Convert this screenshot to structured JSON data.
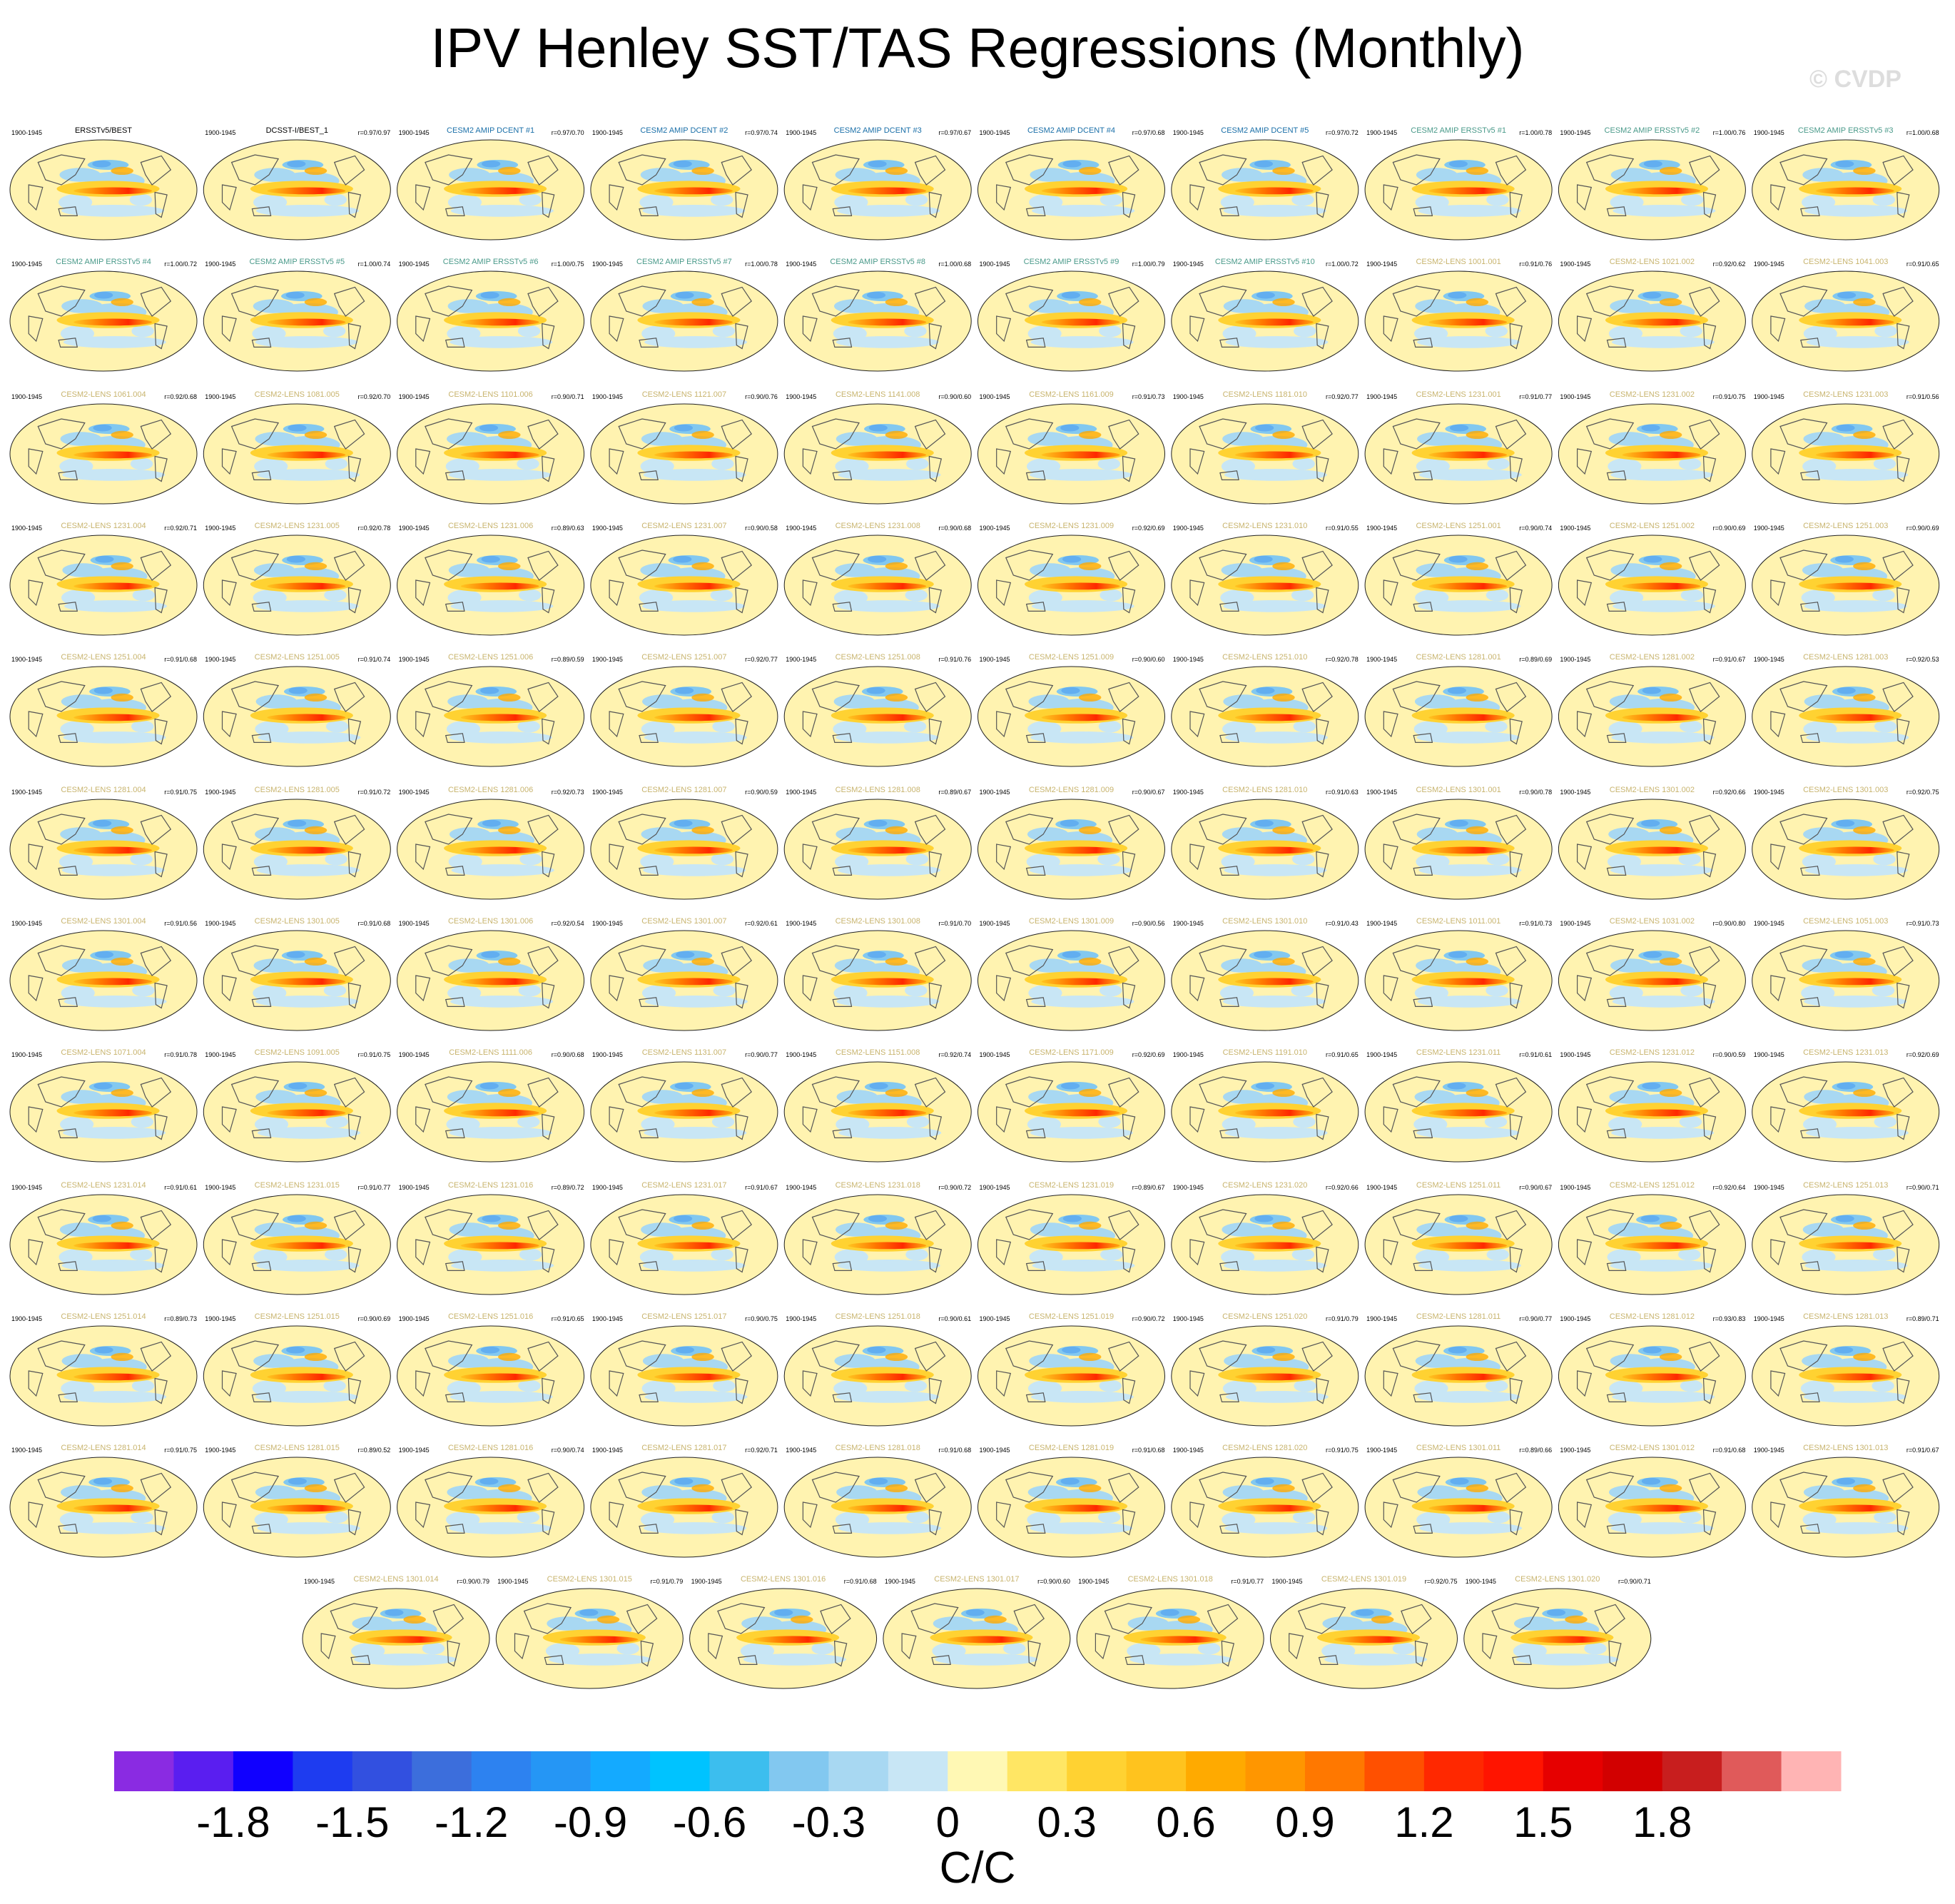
{
  "page": {
    "title": "IPV Henley SST/TAS Regressions (Monthly)",
    "watermark": "© CVDP"
  },
  "chart_data": {
    "type": "heatmap",
    "title": "IPV Henley SST/TAS Regressions (Monthly)",
    "period": "1900-1945",
    "panels": [
      {
        "label": "ERSSTv5/BEST",
        "label_color": "#000000",
        "stats": ""
      },
      {
        "label": "DCSST-I/BEST_1",
        "label_color": "#000000",
        "stats": "r=0.97/0.97"
      },
      {
        "label": "CESM2 AMIP DCENT #1",
        "label_color": "#1a6fa8",
        "stats": "r=0.97/0.70"
      },
      {
        "label": "CESM2 AMIP DCENT #2",
        "label_color": "#1a6fa8",
        "stats": "r=0.97/0.74"
      },
      {
        "label": "CESM2 AMIP DCENT #3",
        "label_color": "#1a6fa8",
        "stats": "r=0.97/0.67"
      },
      {
        "label": "CESM2 AMIP DCENT #4",
        "label_color": "#1a6fa8",
        "stats": "r=0.97/0.68"
      },
      {
        "label": "CESM2 AMIP DCENT #5",
        "label_color": "#1a6fa8",
        "stats": "r=0.97/0.72"
      },
      {
        "label": "CESM2 AMIP ERSSTv5 #1",
        "label_color": "#4a9a8a",
        "stats": "r=1.00/0.78"
      },
      {
        "label": "CESM2 AMIP ERSSTv5 #2",
        "label_color": "#4a9a8a",
        "stats": "r=1.00/0.76"
      },
      {
        "label": "CESM2 AMIP ERSSTv5 #3",
        "label_color": "#4a9a8a",
        "stats": "r=1.00/0.68"
      },
      {
        "label": "CESM2 AMIP ERSSTv5 #4",
        "label_color": "#4a9a8a",
        "stats": "r=1.00/0.72"
      },
      {
        "label": "CESM2 AMIP ERSSTv5 #5",
        "label_color": "#4a9a8a",
        "stats": "r=1.00/0.74"
      },
      {
        "label": "CESM2 AMIP ERSSTv5 #6",
        "label_color": "#4a9a8a",
        "stats": "r=1.00/0.75"
      },
      {
        "label": "CESM2 AMIP ERSSTv5 #7",
        "label_color": "#4a9a8a",
        "stats": "r=1.00/0.78"
      },
      {
        "label": "CESM2 AMIP ERSSTv5 #8",
        "label_color": "#4a9a8a",
        "stats": "r=1.00/0.68"
      },
      {
        "label": "CESM2 AMIP ERSSTv5 #9",
        "label_color": "#4a9a8a",
        "stats": "r=1.00/0.79"
      },
      {
        "label": "CESM2 AMIP ERSSTv5 #10",
        "label_color": "#4a9a8a",
        "stats": "r=1.00/0.72"
      },
      {
        "label": "CESM2-LENS 1001.001",
        "label_color": "#c8b46e",
        "stats": "r=0.91/0.76"
      },
      {
        "label": "CESM2-LENS 1021.002",
        "label_color": "#c8b46e",
        "stats": "r=0.92/0.62"
      },
      {
        "label": "CESM2-LENS 1041.003",
        "label_color": "#c8b46e",
        "stats": "r=0.91/0.65"
      },
      {
        "label": "CESM2-LENS 1061.004",
        "label_color": "#c8b46e",
        "stats": "r=0.92/0.68"
      },
      {
        "label": "CESM2-LENS 1081.005",
        "label_color": "#c8b46e",
        "stats": "r=0.92/0.70"
      },
      {
        "label": "CESM2-LENS 1101.006",
        "label_color": "#c8b46e",
        "stats": "r=0.90/0.71"
      },
      {
        "label": "CESM2-LENS 1121.007",
        "label_color": "#c8b46e",
        "stats": "r=0.90/0.76"
      },
      {
        "label": "CESM2-LENS 1141.008",
        "label_color": "#c8b46e",
        "stats": "r=0.90/0.60"
      },
      {
        "label": "CESM2-LENS 1161.009",
        "label_color": "#c8b46e",
        "stats": "r=0.91/0.73"
      },
      {
        "label": "CESM2-LENS 1181.010",
        "label_color": "#c8b46e",
        "stats": "r=0.92/0.77"
      },
      {
        "label": "CESM2-LENS 1231.001",
        "label_color": "#c8b46e",
        "stats": "r=0.91/0.77"
      },
      {
        "label": "CESM2-LENS 1231.002",
        "label_color": "#c8b46e",
        "stats": "r=0.91/0.75"
      },
      {
        "label": "CESM2-LENS 1231.003",
        "label_color": "#c8b46e",
        "stats": "r=0.91/0.56"
      },
      {
        "label": "CESM2-LENS 1231.004",
        "label_color": "#c8b46e",
        "stats": "r=0.92/0.71"
      },
      {
        "label": "CESM2-LENS 1231.005",
        "label_color": "#c8b46e",
        "stats": "r=0.92/0.78"
      },
      {
        "label": "CESM2-LENS 1231.006",
        "label_color": "#c8b46e",
        "stats": "r=0.89/0.63"
      },
      {
        "label": "CESM2-LENS 1231.007",
        "label_color": "#c8b46e",
        "stats": "r=0.90/0.58"
      },
      {
        "label": "CESM2-LENS 1231.008",
        "label_color": "#c8b46e",
        "stats": "r=0.90/0.68"
      },
      {
        "label": "CESM2-LENS 1231.009",
        "label_color": "#c8b46e",
        "stats": "r=0.92/0.69"
      },
      {
        "label": "CESM2-LENS 1231.010",
        "label_color": "#c8b46e",
        "stats": "r=0.91/0.55"
      },
      {
        "label": "CESM2-LENS 1251.001",
        "label_color": "#c8b46e",
        "stats": "r=0.90/0.74"
      },
      {
        "label": "CESM2-LENS 1251.002",
        "label_color": "#c8b46e",
        "stats": "r=0.90/0.69"
      },
      {
        "label": "CESM2-LENS 1251.003",
        "label_color": "#c8b46e",
        "stats": "r=0.90/0.69"
      },
      {
        "label": "CESM2-LENS 1251.004",
        "label_color": "#c8b46e",
        "stats": "r=0.91/0.68"
      },
      {
        "label": "CESM2-LENS 1251.005",
        "label_color": "#c8b46e",
        "stats": "r=0.91/0.74"
      },
      {
        "label": "CESM2-LENS 1251.006",
        "label_color": "#c8b46e",
        "stats": "r=0.89/0.59"
      },
      {
        "label": "CESM2-LENS 1251.007",
        "label_color": "#c8b46e",
        "stats": "r=0.92/0.77"
      },
      {
        "label": "CESM2-LENS 1251.008",
        "label_color": "#c8b46e",
        "stats": "r=0.91/0.76"
      },
      {
        "label": "CESM2-LENS 1251.009",
        "label_color": "#c8b46e",
        "stats": "r=0.90/0.60"
      },
      {
        "label": "CESM2-LENS 1251.010",
        "label_color": "#c8b46e",
        "stats": "r=0.92/0.78"
      },
      {
        "label": "CESM2-LENS 1281.001",
        "label_color": "#c8b46e",
        "stats": "r=0.89/0.69"
      },
      {
        "label": "CESM2-LENS 1281.002",
        "label_color": "#c8b46e",
        "stats": "r=0.91/0.67"
      },
      {
        "label": "CESM2-LENS 1281.003",
        "label_color": "#c8b46e",
        "stats": "r=0.92/0.53"
      },
      {
        "label": "CESM2-LENS 1281.004",
        "label_color": "#c8b46e",
        "stats": "r=0.91/0.75"
      },
      {
        "label": "CESM2-LENS 1281.005",
        "label_color": "#c8b46e",
        "stats": "r=0.91/0.72"
      },
      {
        "label": "CESM2-LENS 1281.006",
        "label_color": "#c8b46e",
        "stats": "r=0.92/0.73"
      },
      {
        "label": "CESM2-LENS 1281.007",
        "label_color": "#c8b46e",
        "stats": "r=0.90/0.59"
      },
      {
        "label": "CESM2-LENS 1281.008",
        "label_color": "#c8b46e",
        "stats": "r=0.89/0.67"
      },
      {
        "label": "CESM2-LENS 1281.009",
        "label_color": "#c8b46e",
        "stats": "r=0.90/0.67"
      },
      {
        "label": "CESM2-LENS 1281.010",
        "label_color": "#c8b46e",
        "stats": "r=0.91/0.63"
      },
      {
        "label": "CESM2-LENS 1301.001",
        "label_color": "#c8b46e",
        "stats": "r=0.90/0.78"
      },
      {
        "label": "CESM2-LENS 1301.002",
        "label_color": "#c8b46e",
        "stats": "r=0.92/0.66"
      },
      {
        "label": "CESM2-LENS 1301.003",
        "label_color": "#c8b46e",
        "stats": "r=0.92/0.75"
      },
      {
        "label": "CESM2-LENS 1301.004",
        "label_color": "#c8b46e",
        "stats": "r=0.91/0.56"
      },
      {
        "label": "CESM2-LENS 1301.005",
        "label_color": "#c8b46e",
        "stats": "r=0.91/0.68"
      },
      {
        "label": "CESM2-LENS 1301.006",
        "label_color": "#c8b46e",
        "stats": "r=0.92/0.54"
      },
      {
        "label": "CESM2-LENS 1301.007",
        "label_color": "#c8b46e",
        "stats": "r=0.92/0.61"
      },
      {
        "label": "CESM2-LENS 1301.008",
        "label_color": "#c8b46e",
        "stats": "r=0.91/0.70"
      },
      {
        "label": "CESM2-LENS 1301.009",
        "label_color": "#c8b46e",
        "stats": "r=0.90/0.56"
      },
      {
        "label": "CESM2-LENS 1301.010",
        "label_color": "#c8b46e",
        "stats": "r=0.91/0.43"
      },
      {
        "label": "CESM2-LENS 1011.001",
        "label_color": "#c8b46e",
        "stats": "r=0.91/0.73"
      },
      {
        "label": "CESM2-LENS 1031.002",
        "label_color": "#c8b46e",
        "stats": "r=0.90/0.80"
      },
      {
        "label": "CESM2-LENS 1051.003",
        "label_color": "#c8b46e",
        "stats": "r=0.91/0.73"
      },
      {
        "label": "CESM2-LENS 1071.004",
        "label_color": "#c8b46e",
        "stats": "r=0.91/0.78"
      },
      {
        "label": "CESM2-LENS 1091.005",
        "label_color": "#c8b46e",
        "stats": "r=0.91/0.75"
      },
      {
        "label": "CESM2-LENS 1111.006",
        "label_color": "#c8b46e",
        "stats": "r=0.90/0.68"
      },
      {
        "label": "CESM2-LENS 1131.007",
        "label_color": "#c8b46e",
        "stats": "r=0.90/0.77"
      },
      {
        "label": "CESM2-LENS 1151.008",
        "label_color": "#c8b46e",
        "stats": "r=0.92/0.74"
      },
      {
        "label": "CESM2-LENS 1171.009",
        "label_color": "#c8b46e",
        "stats": "r=0.92/0.69"
      },
      {
        "label": "CESM2-LENS 1191.010",
        "label_color": "#c8b46e",
        "stats": "r=0.91/0.65"
      },
      {
        "label": "CESM2-LENS 1231.011",
        "label_color": "#c8b46e",
        "stats": "r=0.91/0.61"
      },
      {
        "label": "CESM2-LENS 1231.012",
        "label_color": "#c8b46e",
        "stats": "r=0.90/0.59"
      },
      {
        "label": "CESM2-LENS 1231.013",
        "label_color": "#c8b46e",
        "stats": "r=0.92/0.69"
      },
      {
        "label": "CESM2-LENS 1231.014",
        "label_color": "#c8b46e",
        "stats": "r=0.91/0.61"
      },
      {
        "label": "CESM2-LENS 1231.015",
        "label_color": "#c8b46e",
        "stats": "r=0.91/0.77"
      },
      {
        "label": "CESM2-LENS 1231.016",
        "label_color": "#c8b46e",
        "stats": "r=0.89/0.72"
      },
      {
        "label": "CESM2-LENS 1231.017",
        "label_color": "#c8b46e",
        "stats": "r=0.91/0.67"
      },
      {
        "label": "CESM2-LENS 1231.018",
        "label_color": "#c8b46e",
        "stats": "r=0.90/0.72"
      },
      {
        "label": "CESM2-LENS 1231.019",
        "label_color": "#c8b46e",
        "stats": "r=0.89/0.67"
      },
      {
        "label": "CESM2-LENS 1231.020",
        "label_color": "#c8b46e",
        "stats": "r=0.92/0.66"
      },
      {
        "label": "CESM2-LENS 1251.011",
        "label_color": "#c8b46e",
        "stats": "r=0.90/0.67"
      },
      {
        "label": "CESM2-LENS 1251.012",
        "label_color": "#c8b46e",
        "stats": "r=0.92/0.64"
      },
      {
        "label": "CESM2-LENS 1251.013",
        "label_color": "#c8b46e",
        "stats": "r=0.90/0.71"
      },
      {
        "label": "CESM2-LENS 1251.014",
        "label_color": "#c8b46e",
        "stats": "r=0.89/0.73"
      },
      {
        "label": "CESM2-LENS 1251.015",
        "label_color": "#c8b46e",
        "stats": "r=0.90/0.69"
      },
      {
        "label": "CESM2-LENS 1251.016",
        "label_color": "#c8b46e",
        "stats": "r=0.91/0.65"
      },
      {
        "label": "CESM2-LENS 1251.017",
        "label_color": "#c8b46e",
        "stats": "r=0.90/0.75"
      },
      {
        "label": "CESM2-LENS 1251.018",
        "label_color": "#c8b46e",
        "stats": "r=0.90/0.61"
      },
      {
        "label": "CESM2-LENS 1251.019",
        "label_color": "#c8b46e",
        "stats": "r=0.90/0.72"
      },
      {
        "label": "CESM2-LENS 1251.020",
        "label_color": "#c8b46e",
        "stats": "r=0.91/0.79"
      },
      {
        "label": "CESM2-LENS 1281.011",
        "label_color": "#c8b46e",
        "stats": "r=0.90/0.77"
      },
      {
        "label": "CESM2-LENS 1281.012",
        "label_color": "#c8b46e",
        "stats": "r=0.93/0.83"
      },
      {
        "label": "CESM2-LENS 1281.013",
        "label_color": "#c8b46e",
        "stats": "r=0.89/0.71"
      },
      {
        "label": "CESM2-LENS 1281.014",
        "label_color": "#c8b46e",
        "stats": "r=0.91/0.75"
      },
      {
        "label": "CESM2-LENS 1281.015",
        "label_color": "#c8b46e",
        "stats": "r=0.89/0.52"
      },
      {
        "label": "CESM2-LENS 1281.016",
        "label_color": "#c8b46e",
        "stats": "r=0.90/0.74"
      },
      {
        "label": "CESM2-LENS 1281.017",
        "label_color": "#c8b46e",
        "stats": "r=0.92/0.71"
      },
      {
        "label": "CESM2-LENS 1281.018",
        "label_color": "#c8b46e",
        "stats": "r=0.91/0.68"
      },
      {
        "label": "CESM2-LENS 1281.019",
        "label_color": "#c8b46e",
        "stats": "r=0.91/0.68"
      },
      {
        "label": "CESM2-LENS 1281.020",
        "label_color": "#c8b46e",
        "stats": "r=0.91/0.75"
      },
      {
        "label": "CESM2-LENS 1301.011",
        "label_color": "#c8b46e",
        "stats": "r=0.89/0.66"
      },
      {
        "label": "CESM2-LENS 1301.012",
        "label_color": "#c8b46e",
        "stats": "r=0.91/0.68"
      },
      {
        "label": "CESM2-LENS 1301.013",
        "label_color": "#c8b46e",
        "stats": "r=0.91/0.67"
      },
      {
        "label": "CESM2-LENS 1301.014",
        "label_color": "#c8b46e",
        "stats": "r=0.90/0.79"
      },
      {
        "label": "CESM2-LENS 1301.015",
        "label_color": "#c8b46e",
        "stats": "r=0.91/0.79"
      },
      {
        "label": "CESM2-LENS 1301.016",
        "label_color": "#c8b46e",
        "stats": "r=0.91/0.68"
      },
      {
        "label": "CESM2-LENS 1301.017",
        "label_color": "#c8b46e",
        "stats": "r=0.90/0.60"
      },
      {
        "label": "CESM2-LENS 1301.018",
        "label_color": "#c8b46e",
        "stats": "r=0.91/0.77"
      },
      {
        "label": "CESM2-LENS 1301.019",
        "label_color": "#c8b46e",
        "stats": "r=0.92/0.75"
      },
      {
        "label": "CESM2-LENS 1301.020",
        "label_color": "#c8b46e",
        "stats": "r=0.90/0.71"
      }
    ],
    "colorbar": {
      "unit_label": "C/C",
      "levels": [
        -2.0,
        -1.9,
        -1.8,
        -1.7,
        -1.6,
        -1.5,
        -1.4,
        -1.3,
        -1.2,
        -1.1,
        -1.0,
        -0.9,
        -0.8,
        -0.7,
        -0.6,
        -0.5,
        -0.4,
        -0.3,
        -0.2,
        -0.1,
        0.0,
        0.1,
        0.2,
        0.3,
        0.4,
        0.5,
        0.6,
        0.7,
        0.8,
        0.9,
        1.0,
        1.1,
        1.2,
        1.3,
        1.4,
        1.5,
        1.6,
        1.7,
        1.8,
        1.9,
        2.0
      ],
      "colors": [
        "#8a2be2",
        "#5a1ef0",
        "#1000ff",
        "#1e3cf0",
        "#3250e0",
        "#3c6edc",
        "#2d82f0",
        "#2596f5",
        "#14aaff",
        "#00c3ff",
        "#3cbeee",
        "#82c8f0",
        "#a8d8f2",
        "#c8e6f5",
        "#fff8b4",
        "#ffe664",
        "#ffd232",
        "#ffc31e",
        "#ffaa00",
        "#ff9600",
        "#ff7800",
        "#ff5000",
        "#ff2800",
        "#ff1400",
        "#e60000",
        "#d20000",
        "#c81e1e",
        "#e05a5a",
        "#ffb4b4"
      ],
      "tick_labels": [
        "-1.8",
        "-1.5",
        "-1.2",
        "-0.9",
        "-0.6",
        "-0.3",
        "0",
        "0.3",
        "0.6",
        "0.9",
        "1.2",
        "1.5",
        "1.8"
      ],
      "tick_values": [
        -1.8,
        -1.5,
        -1.2,
        -0.9,
        -0.6,
        -0.3,
        0.0,
        0.3,
        0.6,
        0.9,
        1.2,
        1.5,
        1.8
      ]
    }
  }
}
